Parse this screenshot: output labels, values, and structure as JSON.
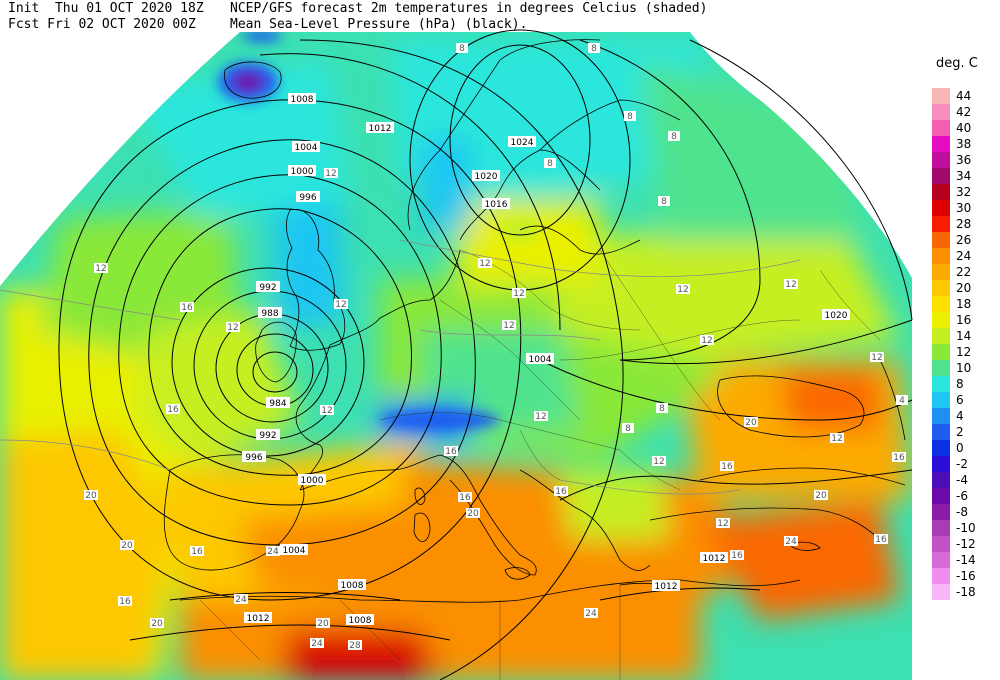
{
  "header": {
    "line1_left": "Init  Thu 01 OCT 2020 18Z",
    "line1_right": "NCEP/GFS forecast 2m temperatures in degrees Celcius (shaded)",
    "line2_left": "Fcst Fri 02 OCT 2020 00Z",
    "line2_right": "Mean Sea-Level Pressure (hPa) (black)."
  },
  "legend": {
    "title": "deg. C",
    "entries": [
      {
        "label": "44",
        "color": "#f9b6b6"
      },
      {
        "label": "42",
        "color": "#f88fc0"
      },
      {
        "label": "40",
        "color": "#f45fb0"
      },
      {
        "label": "38",
        "color": "#e60cc2"
      },
      {
        "label": "36",
        "color": "#c00f9c"
      },
      {
        "label": "34",
        "color": "#a2096f"
      },
      {
        "label": "32",
        "color": "#b4001e"
      },
      {
        "label": "30",
        "color": "#dc0000"
      },
      {
        "label": "28",
        "color": "#f81c00"
      },
      {
        "label": "26",
        "color": "#fa6700"
      },
      {
        "label": "24",
        "color": "#fb8f00"
      },
      {
        "label": "22",
        "color": "#fcaa00"
      },
      {
        "label": "20",
        "color": "#fdc800"
      },
      {
        "label": "18",
        "color": "#fee000"
      },
      {
        "label": "16",
        "color": "#eaf000"
      },
      {
        "label": "14",
        "color": "#c6ef21"
      },
      {
        "label": "12",
        "color": "#8ae838"
      },
      {
        "label": "10",
        "color": "#4fe38e"
      },
      {
        "label": "8",
        "color": "#2ae6dc"
      },
      {
        "label": "6",
        "color": "#1fc6f2"
      },
      {
        "label": "4",
        "color": "#1e90f4"
      },
      {
        "label": "2",
        "color": "#1d5cef"
      },
      {
        "label": "0",
        "color": "#0b2fe2"
      },
      {
        "label": "-2",
        "color": "#2a0ed8"
      },
      {
        "label": "-4",
        "color": "#4a0db8"
      },
      {
        "label": "-6",
        "color": "#6b0aa8"
      },
      {
        "label": "-8",
        "color": "#8a1aa8"
      },
      {
        "label": "-10",
        "color": "#a83cb4"
      },
      {
        "label": "-12",
        "color": "#c251c6"
      },
      {
        "label": "-14",
        "color": "#d86ad8"
      },
      {
        "label": "-16",
        "color": "#f08ef0"
      },
      {
        "label": "-18",
        "color": "#f7b6f7"
      }
    ]
  },
  "pressure_labels": [
    {
      "text": "1008"
    },
    {
      "text": "1012"
    },
    {
      "text": "1004"
    },
    {
      "text": "1000"
    },
    {
      "text": "996"
    },
    {
      "text": "992"
    },
    {
      "text": "988"
    },
    {
      "text": "984"
    },
    {
      "text": "992"
    },
    {
      "text": "996"
    },
    {
      "text": "1000"
    },
    {
      "text": "1004"
    },
    {
      "text": "1008"
    },
    {
      "text": "1012"
    },
    {
      "text": "1008"
    },
    {
      "text": "1024"
    },
    {
      "text": "1020"
    },
    {
      "text": "1016"
    },
    {
      "text": "1004"
    },
    {
      "text": "1020"
    },
    {
      "text": "1012"
    },
    {
      "text": "1012"
    }
  ],
  "temperature_labels": [
    {
      "text": "12"
    },
    {
      "text": "12"
    },
    {
      "text": "12"
    },
    {
      "text": "16"
    },
    {
      "text": "16"
    },
    {
      "text": "20"
    },
    {
      "text": "20"
    },
    {
      "text": "16"
    },
    {
      "text": "16"
    },
    {
      "text": "20"
    },
    {
      "text": "24"
    },
    {
      "text": "24"
    },
    {
      "text": "20"
    },
    {
      "text": "24"
    },
    {
      "text": "28"
    },
    {
      "text": "12"
    },
    {
      "text": "12"
    },
    {
      "text": "8"
    },
    {
      "text": "12"
    },
    {
      "text": "12"
    },
    {
      "text": "8"
    },
    {
      "text": "12"
    },
    {
      "text": "12"
    },
    {
      "text": "16"
    },
    {
      "text": "16"
    },
    {
      "text": "12"
    },
    {
      "text": "20"
    },
    {
      "text": "16"
    },
    {
      "text": "12"
    },
    {
      "text": "8"
    },
    {
      "text": "8"
    },
    {
      "text": "12"
    },
    {
      "text": "12"
    },
    {
      "text": "16"
    },
    {
      "text": "20"
    },
    {
      "text": "16"
    },
    {
      "text": "12"
    },
    {
      "text": "24"
    },
    {
      "text": "16"
    },
    {
      "text": "12"
    },
    {
      "text": "8"
    },
    {
      "text": "4"
    },
    {
      "text": "8"
    },
    {
      "text": "8"
    },
    {
      "text": "8"
    },
    {
      "text": "12"
    },
    {
      "text": "16"
    },
    {
      "text": "20"
    },
    {
      "text": "24"
    }
  ]
}
